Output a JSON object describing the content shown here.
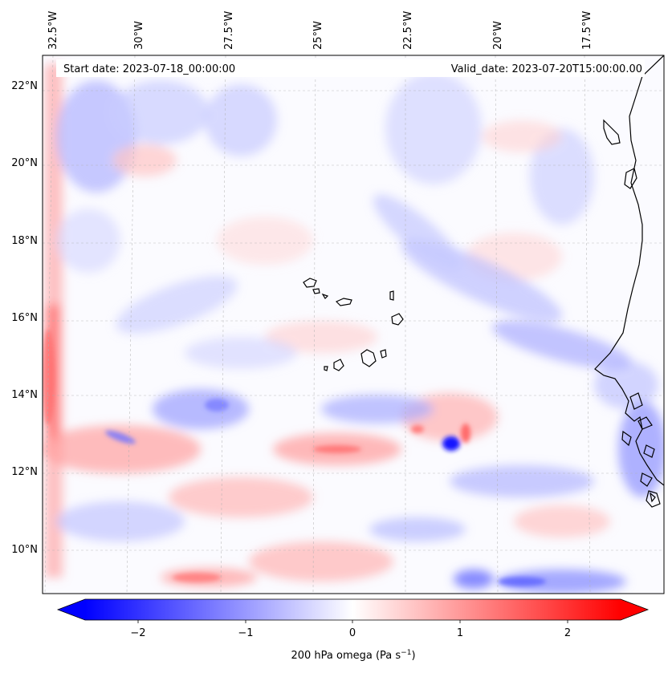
{
  "header": {
    "start_date": "Start date: 2023-07-18_00:00:00",
    "valid_date": "Valid_date: 2023-07-20T15:00:00.00"
  },
  "lon_labels": [
    "32.5°W",
    "30°W",
    "27.5°W",
    "25°W",
    "22.5°W",
    "20°W",
    "17.5°W"
  ],
  "lat_labels": [
    "22°N",
    "20°N",
    "18°N",
    "16°N",
    "14°N",
    "12°N",
    "10°N"
  ],
  "colorbar": {
    "label": "200 hPa omega (Pa s",
    "label_exp": "−1",
    "label_close": ")",
    "ticks": [
      "−2",
      "−1",
      "0",
      "1",
      "2"
    ],
    "min": -2.6,
    "max": 2.6,
    "colormap": "bwr",
    "extend": "both"
  },
  "colors": {
    "negative": "#0000ff",
    "neutral": "#ffffff",
    "positive": "#ff0000",
    "coastline": "#000000",
    "gridline": "#b0b0b0"
  },
  "gridlines": "dashed"
}
